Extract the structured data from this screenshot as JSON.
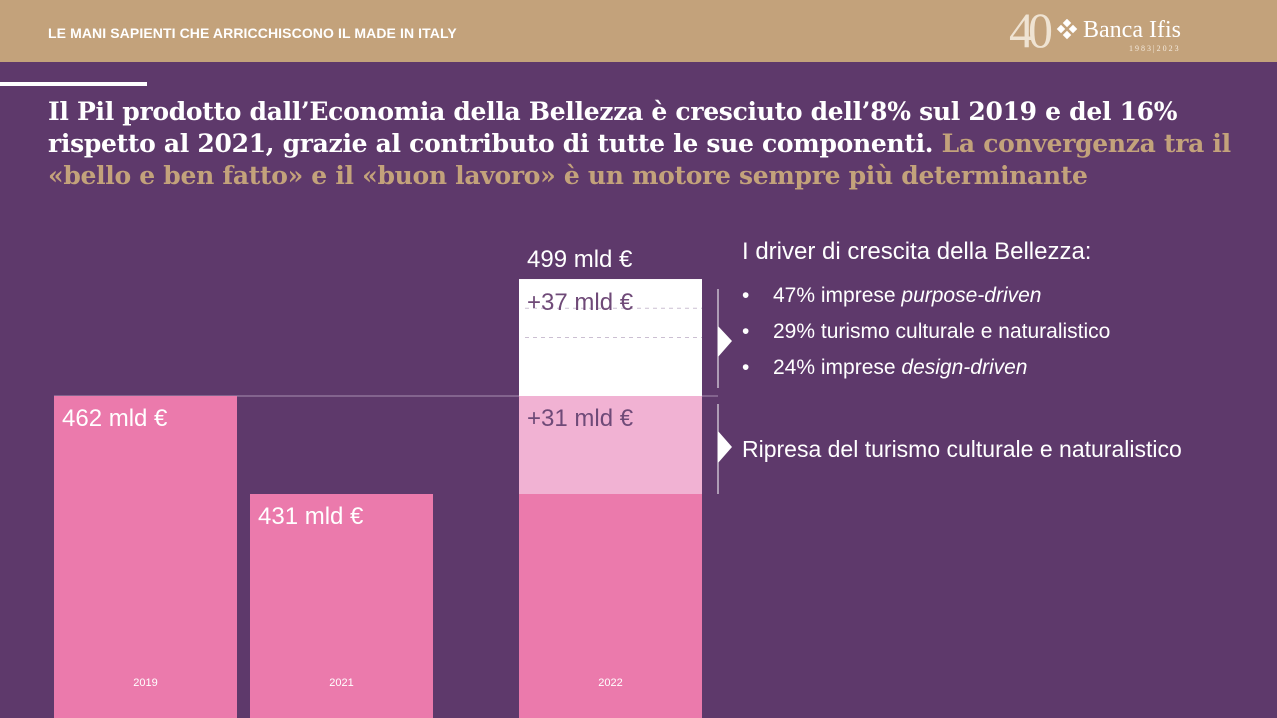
{
  "header": {
    "title": "LE MANI SAPIENTI CHE ARRICCHISCONO IL MADE IN ITALY",
    "logo": {
      "number": "40",
      "name": "Banca Ifis",
      "years": "1983|2023"
    }
  },
  "headline": {
    "main": "Il Pil prodotto dall’Economia della Bellezza è cresciuto dell’8% sul 2019 e del 16% rispetto al 2021, grazie al contributo di tutte le sue componenti.",
    "highlight": "La convergenza tra il «bello e ben fatto» e il «buon lavoro» è un motore sempre più determinante"
  },
  "chart_data": {
    "type": "bar",
    "categories": [
      "2019",
      "2021",
      "2022"
    ],
    "values": [
      462,
      431,
      499
    ],
    "labels": [
      "462 mld €",
      "431 mld €",
      "499 mld €"
    ],
    "stack_2022": [
      {
        "base": 431
      },
      {
        "value": 31,
        "label": "+31 mld €"
      },
      {
        "value": 37,
        "label": "+37 mld €"
      }
    ],
    "colors": {
      "bar": "#eb7aac",
      "increment_31": "#f1b2d3",
      "increment_37": "#ffffff",
      "text_on_bar": "#ffffff",
      "text_on_white": "#6f4a78"
    }
  },
  "right_panel": {
    "title": "I driver di crescita della Bellezza:",
    "bullet": "•",
    "drivers": [
      {
        "text": "47% imprese ",
        "italic": "purpose-driven"
      },
      {
        "text": "29% turismo culturale e naturalistico",
        "italic": ""
      },
      {
        "text": "24% imprese ",
        "italic": "design-driven"
      }
    ],
    "recovery": "Ripresa del turismo culturale e naturalistico"
  },
  "colors": {
    "background": "#5e396b",
    "header": "#c3a27b",
    "accent": "#c3a27b"
  }
}
